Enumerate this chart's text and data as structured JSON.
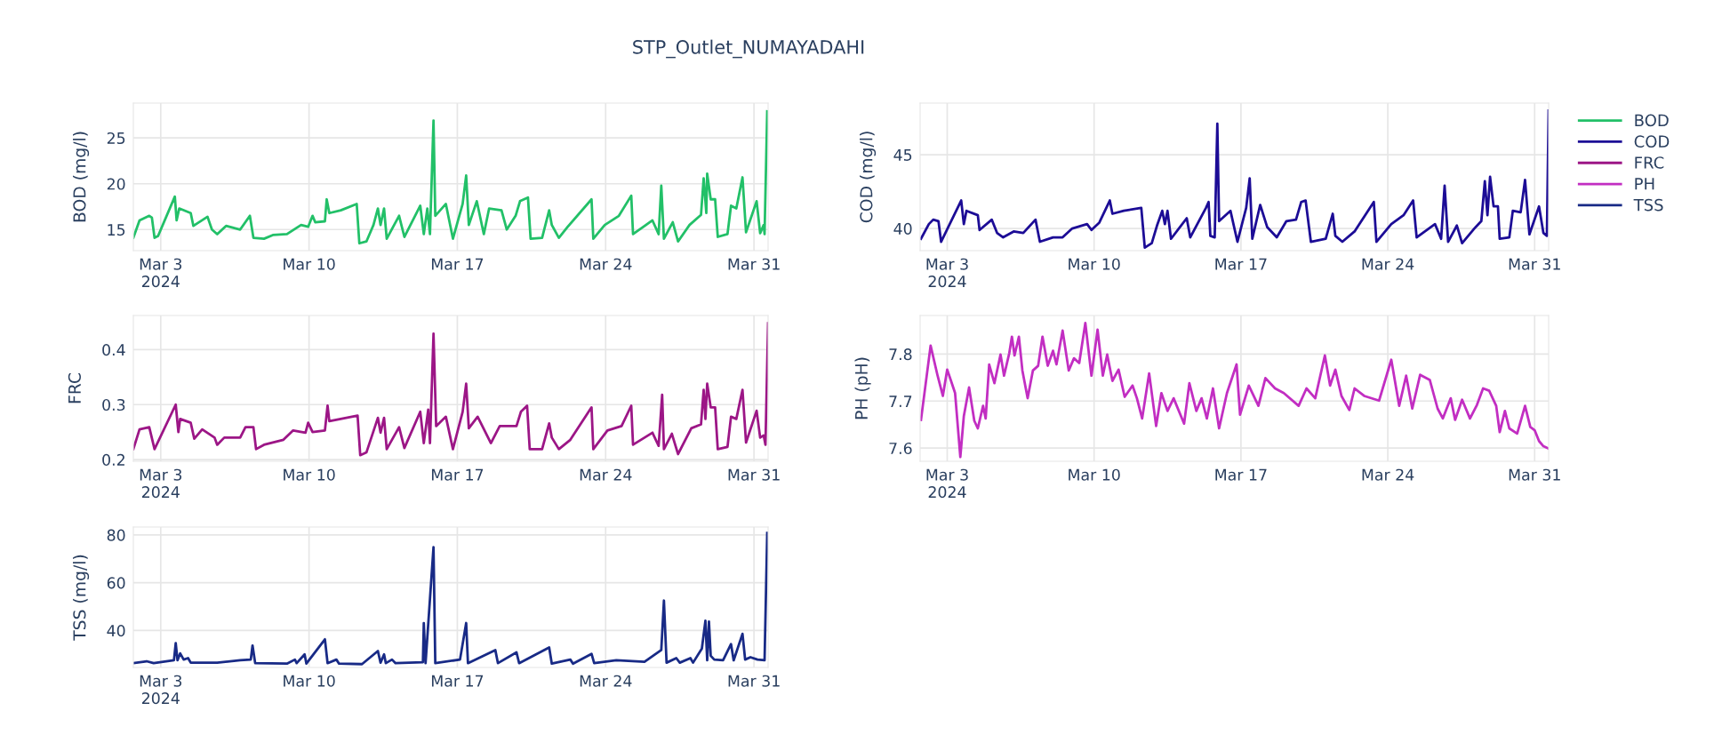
{
  "chart_data": [
    {
      "type": "line",
      "title": "STP_Outlet_NUMAYADAHI",
      "ylabel": "BOD (mg/l)",
      "grid": true,
      "legend": "right",
      "xlim": [
        "2024-03-01T17:00",
        "2024-03-31T16:00"
      ],
      "xticks": [
        {
          "value": "2024-03-03",
          "label": "Mar 3\n2024"
        },
        {
          "value": "2024-03-10",
          "label": "Mar 10"
        },
        {
          "value": "2024-03-17",
          "label": "Mar 17"
        },
        {
          "value": "2024-03-24",
          "label": "Mar 24"
        },
        {
          "value": "2024-03-31",
          "label": "Mar 31"
        }
      ],
      "ylim": [
        12.7,
        28.8
      ],
      "yticks": [
        15,
        20,
        25
      ],
      "series": [
        {
          "name": "BOD",
          "color": "#22c068",
          "x": [
            "2024-03-01T17:00",
            "2024-03-02T00:00",
            "2024-03-02T11:00",
            "2024-03-02T14:00",
            "2024-03-02T17:00",
            "2024-03-02T21:00",
            "2024-03-03T16:00",
            "2024-03-03T18:00",
            "2024-03-03T21:00",
            "2024-03-04T10:00",
            "2024-03-04T13:00",
            "2024-03-05T05:00",
            "2024-03-05T10:00",
            "2024-03-05T16:00",
            "2024-03-06T02:00",
            "2024-03-06T18:00",
            "2024-03-07T05:00",
            "2024-03-07T09:00",
            "2024-03-07T21:00",
            "2024-03-08T07:00",
            "2024-03-08T23:00",
            "2024-03-09T15:00",
            "2024-03-09T23:00",
            "2024-03-10T04:00",
            "2024-03-10T07:00",
            "2024-03-10T18:00",
            "2024-03-10T20:00",
            "2024-03-10T23:00",
            "2024-03-11T12:00",
            "2024-03-12T06:00",
            "2024-03-12T09:00",
            "2024-03-12T17:00",
            "2024-03-13T01:00",
            "2024-03-13T06:00",
            "2024-03-13T09:00",
            "2024-03-13T13:00",
            "2024-03-13T16:00",
            "2024-03-14T06:00",
            "2024-03-14T12:00",
            "2024-03-15T06:00",
            "2024-03-15T10:00",
            "2024-03-15T14:00",
            "2024-03-15T17:00",
            "2024-03-15T21:00",
            "2024-03-15T23:00",
            "2024-03-16T11:00",
            "2024-03-16T19:00",
            "2024-03-17T06:00",
            "2024-03-17T10:00",
            "2024-03-17T13:00",
            "2024-03-17T22:00",
            "2024-03-18T06:00",
            "2024-03-18T12:00",
            "2024-03-19T02:00",
            "2024-03-19T08:00",
            "2024-03-19T18:00",
            "2024-03-19T23:00",
            "2024-03-20T08:00",
            "2024-03-20T11:00",
            "2024-03-21T00:00",
            "2024-03-21T08:00",
            "2024-03-21T11:00",
            "2024-03-21T19:00",
            "2024-03-22T05:00",
            "2024-03-23T08:00",
            "2024-03-23T10:00",
            "2024-03-23T23:00",
            "2024-03-24T15:00",
            "2024-03-25T05:00",
            "2024-03-25T07:00",
            "2024-03-26T05:00",
            "2024-03-26T12:00",
            "2024-03-26T15:00",
            "2024-03-26T18:00",
            "2024-03-27T04:00",
            "2024-03-27T10:00",
            "2024-03-27T23:00",
            "2024-03-28T12:00",
            "2024-03-28T15:00",
            "2024-03-28T18:00",
            "2024-03-28T19:00",
            "2024-03-28T23:00",
            "2024-03-29T04:00",
            "2024-03-29T07:00",
            "2024-03-29T18:00",
            "2024-03-29T22:00",
            "2024-03-30T04:00",
            "2024-03-30T11:00",
            "2024-03-30T15:00",
            "2024-03-31T03:00",
            "2024-03-31T07:00",
            "2024-03-31T11:00",
            "2024-03-31T12:00",
            "2024-03-31T15:00"
          ],
          "values": [
            14.1,
            16.0,
            16.5,
            16.3,
            14.1,
            14.3,
            18.6,
            16.0,
            17.3,
            16.8,
            15.4,
            16.4,
            15.0,
            14.5,
            15.4,
            15.0,
            16.5,
            14.1,
            14.0,
            14.4,
            14.5,
            15.5,
            15.3,
            16.5,
            15.8,
            15.9,
            18.3,
            16.8,
            17.1,
            17.8,
            13.5,
            13.7,
            15.5,
            17.3,
            15.5,
            17.3,
            14.0,
            16.5,
            14.2,
            17.6,
            14.5,
            17.3,
            14.5,
            26.9,
            16.5,
            17.8,
            14.0,
            17.8,
            20.9,
            15.5,
            18.1,
            14.5,
            17.3,
            17.1,
            15.0,
            16.5,
            18.1,
            18.5,
            14.0,
            14.1,
            17.1,
            15.5,
            14.1,
            15.3,
            18.3,
            14.0,
            15.5,
            16.5,
            18.7,
            14.5,
            16.0,
            14.5,
            19.8,
            14.0,
            15.8,
            13.7,
            15.5,
            16.6,
            20.6,
            16.8,
            21.1,
            18.3,
            18.3,
            14.2,
            14.5,
            17.6,
            17.3,
            20.7,
            14.7,
            18.1,
            14.6,
            15.5,
            14.5,
            27.9
          ]
        }
      ]
    },
    {
      "type": "line",
      "ylabel": "COD (mg/l)",
      "grid": true,
      "legend": "right",
      "xlim": [
        "2024-03-01T17:00",
        "2024-03-31T16:00"
      ],
      "xticks": [
        {
          "value": "2024-03-03",
          "label": "Mar 3\n2024"
        },
        {
          "value": "2024-03-10",
          "label": "Mar 10"
        },
        {
          "value": "2024-03-17",
          "label": "Mar 17"
        },
        {
          "value": "2024-03-24",
          "label": "Mar 24"
        },
        {
          "value": "2024-03-31",
          "label": "Mar 31"
        }
      ],
      "ylim": [
        38.5,
        48.5
      ],
      "yticks": [
        40,
        45
      ],
      "series": [
        {
          "name": "COD",
          "color": "#1c0c96",
          "x": [
            "2024-03-01T18:00",
            "2024-03-02T03:00",
            "2024-03-02T08:00",
            "2024-03-02T14:00",
            "2024-03-02T17:00",
            "2024-03-03T16:00",
            "2024-03-03T19:00",
            "2024-03-03T22:00",
            "2024-03-04T11:00",
            "2024-03-04T13:00",
            "2024-03-05T03:00",
            "2024-03-05T09:00",
            "2024-03-05T16:00",
            "2024-03-06T04:00",
            "2024-03-06T15:00",
            "2024-03-07T05:00",
            "2024-03-07T10:00",
            "2024-03-08T01:00",
            "2024-03-08T12:00",
            "2024-03-08T23:00",
            "2024-03-09T16:00",
            "2024-03-09T21:00",
            "2024-03-10T06:00",
            "2024-03-10T18:00",
            "2024-03-10T21:00",
            "2024-03-11T10:00",
            "2024-03-12T06:00",
            "2024-03-12T10:00",
            "2024-03-12T18:00",
            "2024-03-13T00:00",
            "2024-03-13T06:00",
            "2024-03-13T09:00",
            "2024-03-13T12:00",
            "2024-03-13T16:00",
            "2024-03-14T10:00",
            "2024-03-14T14:00",
            "2024-03-15T08:00",
            "2024-03-15T11:00",
            "2024-03-15T13:00",
            "2024-03-15T18:00",
            "2024-03-15T21:00",
            "2024-03-15T23:00",
            "2024-03-16T12:00",
            "2024-03-16T20:00",
            "2024-03-17T06:00",
            "2024-03-17T10:00",
            "2024-03-17T13:00",
            "2024-03-17T22:00",
            "2024-03-18T06:00",
            "2024-03-18T17:00",
            "2024-03-19T04:00",
            "2024-03-19T15:00",
            "2024-03-19T21:00",
            "2024-03-20T02:00",
            "2024-03-20T08:00",
            "2024-03-21T01:00",
            "2024-03-21T09:00",
            "2024-03-21T12:00",
            "2024-03-21T20:00",
            "2024-03-22T10:00",
            "2024-03-23T08:00",
            "2024-03-23T11:00",
            "2024-03-24T04:00",
            "2024-03-24T18:00",
            "2024-03-25T05:00",
            "2024-03-25T09:00",
            "2024-03-26T06:00",
            "2024-03-26T13:00",
            "2024-03-26T17:00",
            "2024-03-26T21:00",
            "2024-03-27T07:00",
            "2024-03-27T13:00",
            "2024-03-28T03:00",
            "2024-03-28T11:00",
            "2024-03-28T15:00",
            "2024-03-28T18:00",
            "2024-03-28T21:00",
            "2024-03-29T01:00",
            "2024-03-29T06:00",
            "2024-03-29T08:00",
            "2024-03-29T19:00",
            "2024-03-29T23:00",
            "2024-03-30T08:00",
            "2024-03-30T13:00",
            "2024-03-30T18:00",
            "2024-03-31T05:00",
            "2024-03-31T10:00",
            "2024-03-31T14:00",
            "2024-03-31T16:00"
          ],
          "values": [
            39.3,
            40.3,
            40.6,
            40.5,
            39.1,
            41.9,
            40.3,
            41.2,
            40.9,
            39.9,
            40.6,
            39.7,
            39.4,
            39.8,
            39.7,
            40.6,
            39.1,
            39.4,
            39.4,
            40.0,
            40.3,
            39.9,
            40.4,
            41.9,
            41.0,
            41.2,
            41.4,
            38.7,
            39.0,
            40.2,
            41.2,
            40.3,
            41.2,
            39.3,
            40.7,
            39.4,
            41.4,
            41.8,
            39.5,
            39.4,
            47.1,
            40.5,
            41.2,
            39.1,
            41.4,
            43.4,
            39.3,
            41.6,
            40.1,
            39.4,
            40.5,
            40.6,
            41.8,
            41.9,
            39.1,
            39.3,
            41.0,
            39.5,
            39.1,
            39.8,
            41.8,
            39.1,
            40.3,
            40.9,
            41.9,
            39.4,
            40.3,
            39.3,
            42.9,
            39.1,
            40.2,
            39.0,
            40.0,
            40.5,
            43.2,
            40.9,
            43.5,
            41.5,
            41.5,
            39.3,
            39.4,
            41.2,
            41.1,
            43.3,
            39.6,
            41.5,
            39.7,
            39.5,
            48.0
          ]
        }
      ]
    },
    {
      "type": "line",
      "ylabel": "FRC",
      "grid": true,
      "legend": "right",
      "xlim": [
        "2024-03-01T17:00",
        "2024-03-31T16:00"
      ],
      "xticks": [
        {
          "value": "2024-03-03",
          "label": "Mar 3\n2024"
        },
        {
          "value": "2024-03-10",
          "label": "Mar 10"
        },
        {
          "value": "2024-03-17",
          "label": "Mar 17"
        },
        {
          "value": "2024-03-24",
          "label": "Mar 24"
        },
        {
          "value": "2024-03-31",
          "label": "Mar 31"
        }
      ],
      "ylim": [
        0.197,
        0.462
      ],
      "yticks": [
        {
          "value": 0.2,
          "label": "0.2"
        },
        {
          "value": 0.3,
          "label": "0.3"
        },
        {
          "value": 0.4,
          "label": "0.4"
        }
      ],
      "series": [
        {
          "name": "FRC",
          "color": "#9c1686",
          "x": [
            "2024-03-01T17:00",
            "2024-03-02T00:00",
            "2024-03-02T11:00",
            "2024-03-02T17:00",
            "2024-03-03T17:00",
            "2024-03-03T20:00",
            "2024-03-03T22:00",
            "2024-03-04T10:00",
            "2024-03-04T14:00",
            "2024-03-04T23:00",
            "2024-03-05T13:00",
            "2024-03-05T16:00",
            "2024-03-06T00:00",
            "2024-03-06T18:00",
            "2024-03-07T00:00",
            "2024-03-07T09:00",
            "2024-03-07T12:00",
            "2024-03-07T21:00",
            "2024-03-08T19:00",
            "2024-03-09T06:00",
            "2024-03-09T20:00",
            "2024-03-09T23:00",
            "2024-03-10T04:00",
            "2024-03-10T18:00",
            "2024-03-10T21:00",
            "2024-03-10T23:00",
            "2024-03-12T07:00",
            "2024-03-12T10:00",
            "2024-03-12T17:00",
            "2024-03-13T06:00",
            "2024-03-13T09:00",
            "2024-03-13T13:00",
            "2024-03-13T16:00",
            "2024-03-14T06:00",
            "2024-03-14T12:00",
            "2024-03-15T06:00",
            "2024-03-15T10:00",
            "2024-03-15T15:00",
            "2024-03-15T17:00",
            "2024-03-15T21:00",
            "2024-03-16T00:00",
            "2024-03-16T11:00",
            "2024-03-16T19:00",
            "2024-03-17T06:00",
            "2024-03-17T10:00",
            "2024-03-17T13:00",
            "2024-03-17T23:00",
            "2024-03-18T14:00",
            "2024-03-19T00:00",
            "2024-03-19T19:00",
            "2024-03-20T00:00",
            "2024-03-20T07:00",
            "2024-03-20T10:00",
            "2024-03-21T00:00",
            "2024-03-21T08:00",
            "2024-03-21T11:00",
            "2024-03-21T19:00",
            "2024-03-22T08:00",
            "2024-03-23T08:00",
            "2024-03-23T10:00",
            "2024-03-24T02:00",
            "2024-03-24T18:00",
            "2024-03-25T05:00",
            "2024-03-25T07:00",
            "2024-03-26T05:00",
            "2024-03-26T12:00",
            "2024-03-26T16:00",
            "2024-03-26T18:00",
            "2024-03-27T03:00",
            "2024-03-27T10:00",
            "2024-03-28T01:00",
            "2024-03-28T12:00",
            "2024-03-28T15:00",
            "2024-03-28T17:00",
            "2024-03-28T19:00",
            "2024-03-28T23:00",
            "2024-03-29T04:00",
            "2024-03-29T07:00",
            "2024-03-29T18:00",
            "2024-03-29T22:00",
            "2024-03-30T04:00",
            "2024-03-30T11:00",
            "2024-03-30T15:00",
            "2024-03-31T03:00",
            "2024-03-31T07:00",
            "2024-03-31T11:00",
            "2024-03-31T13:00",
            "2024-03-31T16:00"
          ],
          "values": [
            0.219,
            0.255,
            0.259,
            0.219,
            0.3,
            0.25,
            0.274,
            0.267,
            0.238,
            0.255,
            0.24,
            0.227,
            0.24,
            0.24,
            0.259,
            0.259,
            0.219,
            0.227,
            0.236,
            0.253,
            0.249,
            0.267,
            0.25,
            0.253,
            0.298,
            0.27,
            0.28,
            0.208,
            0.213,
            0.276,
            0.249,
            0.276,
            0.219,
            0.259,
            0.221,
            0.287,
            0.23,
            0.291,
            0.23,
            0.429,
            0.261,
            0.278,
            0.219,
            0.287,
            0.338,
            0.257,
            0.278,
            0.23,
            0.261,
            0.261,
            0.287,
            0.298,
            0.219,
            0.219,
            0.266,
            0.24,
            0.219,
            0.236,
            0.295,
            0.219,
            0.253,
            0.261,
            0.298,
            0.227,
            0.249,
            0.225,
            0.318,
            0.219,
            0.247,
            0.21,
            0.257,
            0.264,
            0.327,
            0.274,
            0.338,
            0.295,
            0.295,
            0.219,
            0.223,
            0.278,
            0.274,
            0.327,
            0.231,
            0.289,
            0.24,
            0.244,
            0.227,
            0.448
          ]
        }
      ]
    },
    {
      "type": "line",
      "ylabel": "PH (pH)",
      "grid": true,
      "legend": "right",
      "xlim": [
        "2024-03-01T17:00",
        "2024-03-31T16:00"
      ],
      "xticks": [
        {
          "value": "2024-03-03",
          "label": "Mar 3\n2024"
        },
        {
          "value": "2024-03-10",
          "label": "Mar 10"
        },
        {
          "value": "2024-03-17",
          "label": "Mar 17"
        },
        {
          "value": "2024-03-24",
          "label": "Mar 24"
        },
        {
          "value": "2024-03-31",
          "label": "Mar 31"
        }
      ],
      "ylim": [
        7.572,
        7.882
      ],
      "yticks": [
        7.6,
        7.7,
        7.8
      ],
      "series": [
        {
          "name": "PH",
          "color": "#c22ec2",
          "x": [
            "2024-03-01T18:00",
            "2024-03-02T05:00",
            "2024-03-02T13:00",
            "2024-03-02T19:00",
            "2024-03-03T00:00",
            "2024-03-03T04:00",
            "2024-03-03T09:00",
            "2024-03-03T15:00",
            "2024-03-03T19:00",
            "2024-03-04T01:00",
            "2024-03-04T07:00",
            "2024-03-04T11:00",
            "2024-03-04T17:00",
            "2024-03-04T20:00",
            "2024-03-05T00:00",
            "2024-03-05T06:00",
            "2024-03-05T13:00",
            "2024-03-05T17:00",
            "2024-03-05T23:00",
            "2024-03-06T02:00",
            "2024-03-06T05:00",
            "2024-03-06T10:00",
            "2024-03-06T14:00",
            "2024-03-06T20:00",
            "2024-03-07T02:00",
            "2024-03-07T08:00",
            "2024-03-07T13:00",
            "2024-03-07T19:00",
            "2024-03-08T01:00",
            "2024-03-08T05:00",
            "2024-03-08T12:00",
            "2024-03-08T19:00",
            "2024-03-09T01:00",
            "2024-03-09T07:00",
            "2024-03-09T14:00",
            "2024-03-09T21:00",
            "2024-03-10T04:00",
            "2024-03-10T10:00",
            "2024-03-10T15:00",
            "2024-03-10T21:00",
            "2024-03-11T04:00",
            "2024-03-11T11:00",
            "2024-03-11T20:00",
            "2024-03-12T01:00",
            "2024-03-12T07:00",
            "2024-03-12T15:00",
            "2024-03-12T23:00",
            "2024-03-13T05:00",
            "2024-03-13T12:00",
            "2024-03-13T19:00",
            "2024-03-14T07:00",
            "2024-03-14T13:00",
            "2024-03-14T21:00",
            "2024-03-15T03:00",
            "2024-03-15T09:00",
            "2024-03-15T16:00",
            "2024-03-15T23:00",
            "2024-03-16T08:00",
            "2024-03-16T19:00",
            "2024-03-16T23:00",
            "2024-03-17T09:00",
            "2024-03-17T20:00",
            "2024-03-18T04:00",
            "2024-03-18T15:00",
            "2024-03-19T01:00",
            "2024-03-19T18:00",
            "2024-03-20T03:00",
            "2024-03-20T13:00",
            "2024-03-21T00:00",
            "2024-03-21T06:00",
            "2024-03-21T12:00",
            "2024-03-21T19:00",
            "2024-03-22T04:00",
            "2024-03-22T10:00",
            "2024-03-22T21:00",
            "2024-03-23T14:00",
            "2024-03-24T04:00",
            "2024-03-24T13:00",
            "2024-03-24T21:00",
            "2024-03-25T04:00",
            "2024-03-25T13:00",
            "2024-03-26T00:00",
            "2024-03-26T09:00",
            "2024-03-26T15:00",
            "2024-03-27T00:00",
            "2024-03-27T05:00",
            "2024-03-27T13:00",
            "2024-03-27T22:00",
            "2024-03-28T06:00",
            "2024-03-28T13:00",
            "2024-03-28T20:00",
            "2024-03-29T04:00",
            "2024-03-29T08:00",
            "2024-03-29T14:00",
            "2024-03-29T19:00",
            "2024-03-30T04:00",
            "2024-03-30T13:00",
            "2024-03-30T19:00",
            "2024-03-31T00:00",
            "2024-03-31T05:00",
            "2024-03-31T10:00",
            "2024-03-31T16:00"
          ],
          "values": [
            7.66,
            7.818,
            7.754,
            7.711,
            7.767,
            7.745,
            7.717,
            7.581,
            7.668,
            7.729,
            7.658,
            7.642,
            7.69,
            7.663,
            7.778,
            7.738,
            7.799,
            7.754,
            7.802,
            7.837,
            7.797,
            7.837,
            7.765,
            7.706,
            7.765,
            7.775,
            7.837,
            7.775,
            7.807,
            7.778,
            7.85,
            7.765,
            7.791,
            7.781,
            7.866,
            7.754,
            7.852,
            7.754,
            7.799,
            7.743,
            7.767,
            7.709,
            7.733,
            7.706,
            7.663,
            7.759,
            7.647,
            7.717,
            7.679,
            7.706,
            7.652,
            7.738,
            7.679,
            7.706,
            7.663,
            7.727,
            7.642,
            7.717,
            7.778,
            7.671,
            7.733,
            7.69,
            7.749,
            7.727,
            7.717,
            7.69,
            7.727,
            7.706,
            7.797,
            7.733,
            7.767,
            7.711,
            7.681,
            7.727,
            7.711,
            7.701,
            7.788,
            7.69,
            7.754,
            7.684,
            7.756,
            7.745,
            7.684,
            7.663,
            7.706,
            7.66,
            7.703,
            7.663,
            7.692,
            7.727,
            7.722,
            7.69,
            7.634,
            7.679,
            7.642,
            7.631,
            7.69,
            7.645,
            7.638,
            7.615,
            7.604,
            7.599
          ]
        }
      ]
    },
    {
      "type": "line",
      "ylabel": "TSS (mg/l)",
      "grid": true,
      "legend": "right",
      "xlim": [
        "2024-03-01T17:00",
        "2024-03-31T16:00"
      ],
      "xticks": [
        {
          "value": "2024-03-03",
          "label": "Mar 3\n2024"
        },
        {
          "value": "2024-03-10",
          "label": "Mar 10"
        },
        {
          "value": "2024-03-17",
          "label": "Mar 17"
        },
        {
          "value": "2024-03-24",
          "label": "Mar 24"
        },
        {
          "value": "2024-03-31",
          "label": "Mar 31"
        }
      ],
      "ylim": [
        24.5,
        83.3
      ],
      "yticks": [
        40,
        60,
        80
      ],
      "series": [
        {
          "name": "TSS",
          "color": "#182a86",
          "x": [
            "2024-03-01T17:00",
            "2024-03-02T08:00",
            "2024-03-02T16:00",
            "2024-03-03T15:00",
            "2024-03-03T17:00",
            "2024-03-03T19:00",
            "2024-03-03T22:00",
            "2024-03-04T02:00",
            "2024-03-04T07:00",
            "2024-03-04T10:00",
            "2024-03-05T16:00",
            "2024-03-06T18:00",
            "2024-03-07T06:00",
            "2024-03-07T08:00",
            "2024-03-07T11:00",
            "2024-03-08T23:00",
            "2024-03-09T08:00",
            "2024-03-09T10:00",
            "2024-03-09T19:00",
            "2024-03-09T21:00",
            "2024-03-10T18:00",
            "2024-03-10T21:00",
            "2024-03-11T07:00",
            "2024-03-11T10:00",
            "2024-03-12T12:00",
            "2024-03-13T06:00",
            "2024-03-13T09:00",
            "2024-03-13T13:00",
            "2024-03-13T15:00",
            "2024-03-13T22:00",
            "2024-03-14T02:00",
            "2024-03-15T09:00",
            "2024-03-15T10:00",
            "2024-03-15T12:00",
            "2024-03-15T21:00",
            "2024-03-15T23:00",
            "2024-03-17T03:00",
            "2024-03-17T10:00",
            "2024-03-17T12:00",
            "2024-03-18T19:00",
            "2024-03-18T22:00",
            "2024-03-19T19:00",
            "2024-03-19T22:00",
            "2024-03-21T08:00",
            "2024-03-21T11:00",
            "2024-03-22T08:00",
            "2024-03-22T11:00",
            "2024-03-23T08:00",
            "2024-03-23T11:00",
            "2024-03-24T12:00",
            "2024-03-25T20:00",
            "2024-03-26T15:00",
            "2024-03-26T18:00",
            "2024-03-26T21:00",
            "2024-03-27T08:00",
            "2024-03-27T12:00",
            "2024-03-28T00:00",
            "2024-03-28T03:00",
            "2024-03-28T13:00",
            "2024-03-28T17:00",
            "2024-03-28T19:00",
            "2024-03-28T21:00",
            "2024-03-28T23:00",
            "2024-03-29T03:00",
            "2024-03-29T13:00",
            "2024-03-29T22:00",
            "2024-03-30T01:00",
            "2024-03-30T11:00",
            "2024-03-30T14:00",
            "2024-03-30T20:00",
            "2024-03-31T04:00",
            "2024-03-31T12:00",
            "2024-03-31T15:00"
          ],
          "values": [
            26.3,
            27.1,
            26.3,
            27.5,
            34.7,
            27.5,
            30.4,
            27.8,
            28.4,
            26.5,
            26.5,
            27.5,
            27.8,
            33.7,
            26.3,
            26.1,
            27.8,
            26.3,
            30.0,
            26.1,
            36.3,
            26.3,
            27.8,
            26.1,
            25.9,
            31.4,
            26.5,
            30.0,
            26.3,
            27.8,
            26.3,
            26.7,
            43.1,
            26.3,
            74.9,
            26.3,
            27.8,
            43.1,
            26.3,
            31.8,
            26.3,
            30.8,
            26.3,
            32.9,
            26.1,
            27.8,
            26.1,
            30.2,
            26.3,
            27.5,
            26.9,
            31.8,
            52.5,
            26.5,
            28.4,
            26.5,
            28.4,
            26.5,
            32.4,
            44.1,
            27.5,
            43.7,
            29.4,
            27.8,
            27.5,
            34.3,
            27.5,
            38.6,
            27.8,
            28.8,
            27.8,
            27.5,
            80.8
          ]
        }
      ]
    }
  ]
}
